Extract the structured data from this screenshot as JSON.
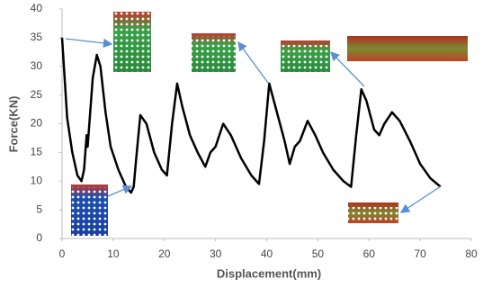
{
  "chart_data": {
    "type": "line",
    "xlabel": "Displacement(mm)",
    "ylabel": "Force(KN)",
    "x": [
      0,
      0.5,
      1,
      2,
      3,
      3.8,
      4.3,
      4.8,
      5,
      5.5,
      6,
      6.8,
      7.5,
      8.5,
      9.5,
      11,
      12.5,
      13.5,
      14,
      14.5,
      15.3,
      16.5,
      18,
      19.5,
      20.5,
      21.5,
      22.5,
      23.5,
      25,
      26.5,
      28,
      29,
      30,
      31.5,
      33,
      35,
      37,
      38.5,
      39.5,
      40.5,
      42,
      43.5,
      44.5,
      45.5,
      46.5,
      48,
      49.5,
      51,
      53,
      55,
      56.5,
      57.5,
      58.5,
      59.5,
      61,
      62,
      63,
      64.5,
      66,
      68,
      70,
      72,
      74
    ],
    "series": [
      {
        "color": "#000000",
        "values": [
          35,
          28,
          21,
          15,
          11,
          10,
          12,
          18,
          16,
          22,
          28,
          32,
          30,
          22,
          16,
          12,
          9,
          8,
          9,
          14,
          21.5,
          20,
          15,
          12,
          11,
          20,
          27,
          23,
          18,
          15,
          12.5,
          15,
          16,
          20,
          18,
          14,
          11,
          9.5,
          17,
          27,
          22,
          17,
          13,
          16,
          17,
          20.5,
          18,
          15,
          12,
          10,
          9,
          18,
          26,
          24,
          19,
          18,
          20,
          22,
          20.5,
          17,
          13,
          10.5,
          9
        ]
      }
    ],
    "xlim": [
      0,
      80
    ],
    "xticks": [
      0,
      10,
      20,
      30,
      40,
      50,
      60,
      70,
      80
    ],
    "ylim": [
      0,
      40
    ],
    "yticks": [
      0,
      5,
      10,
      15,
      20,
      25,
      30,
      35,
      40
    ],
    "grid": false
  }
}
